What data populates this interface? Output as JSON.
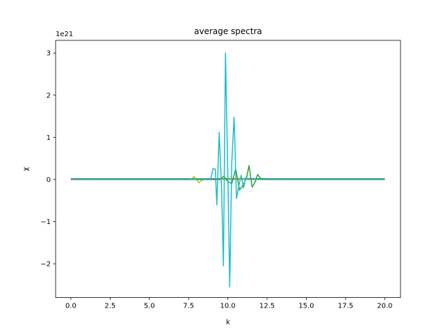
{
  "chart_data": {
    "type": "line",
    "title": "average spectra",
    "xlabel": "k",
    "ylabel": "χ",
    "offset_text": "1e21",
    "xlim": [
      -0.97,
      21.0
    ],
    "ylim": [
      -2.8,
      3.3
    ],
    "xticks": [
      0.0,
      2.5,
      5.0,
      7.5,
      10.0,
      12.5,
      15.0,
      17.5,
      20.0
    ],
    "xtick_labels": [
      "0.0",
      "2.5",
      "5.0",
      "7.5",
      "10.0",
      "12.5",
      "15.0",
      "17.5",
      "20.0"
    ],
    "yticks": [
      -2,
      -1,
      0,
      1,
      2,
      3
    ],
    "ytick_labels": [
      "−2",
      "−1",
      "0",
      "1",
      "2",
      "3"
    ],
    "grid": false,
    "series": [
      {
        "color": "#7f7f7f",
        "x": [
          0,
          20
        ],
        "y": [
          0.02,
          0.02
        ]
      },
      {
        "color": "#bcbd22",
        "x": [
          0,
          7.5,
          7.7,
          7.85,
          8.0,
          8.15,
          8.3,
          8.5,
          20
        ],
        "y": [
          0,
          0,
          0.02,
          0.07,
          0.0,
          -0.08,
          -0.03,
          0,
          0
        ]
      },
      {
        "color": "#2ca02c",
        "x": [
          0,
          9.5,
          9.75,
          10.0,
          10.25,
          10.5,
          10.75,
          11.0,
          11.2,
          11.35,
          11.55,
          11.75,
          11.9,
          12.1,
          12.3,
          20
        ],
        "y": [
          0,
          0,
          0.08,
          -0.05,
          -0.1,
          0.25,
          -0.25,
          -0.12,
          0.05,
          0.33,
          -0.18,
          -0.05,
          0.12,
          0.02,
          0.0,
          0
        ]
      },
      {
        "color": "#17becf",
        "x": [
          0,
          8.9,
          9.05,
          9.2,
          9.3,
          9.45,
          9.6,
          9.72,
          9.85,
          10.0,
          10.12,
          10.25,
          10.4,
          10.55,
          10.7,
          10.85,
          11.0,
          11.15,
          11.3,
          20
        ],
        "y": [
          0,
          0,
          0.25,
          0.25,
          -0.6,
          1.12,
          -0.2,
          -2.05,
          3.0,
          0.1,
          -2.55,
          0.4,
          1.48,
          -0.45,
          -0.15,
          0.1,
          -0.2,
          0.05,
          0,
          0
        ]
      }
    ]
  }
}
